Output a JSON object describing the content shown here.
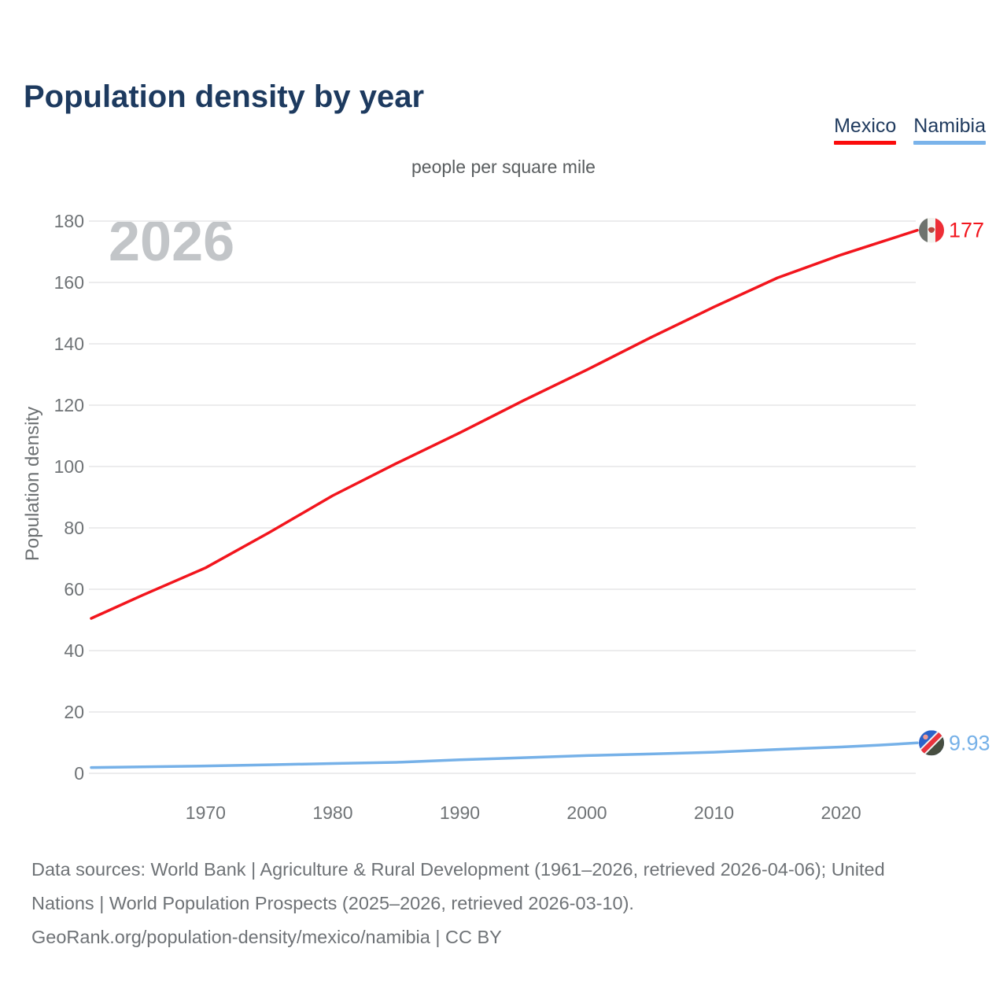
{
  "header": {
    "title": "Population density by year",
    "subtitle": "people per square mile"
  },
  "legend": {
    "items": [
      {
        "label": "Mexico",
        "color": "#fb0b0b"
      },
      {
        "label": "Namibia",
        "color": "#7ab3ea"
      }
    ]
  },
  "chart_data": {
    "type": "line",
    "title": "Population density by year",
    "subtitle": "people per square mile",
    "xlabel": "",
    "ylabel": "Population density",
    "watermark": "2026",
    "xlim": [
      1961,
      2026
    ],
    "ylim": [
      0,
      185
    ],
    "grid": "horizontal",
    "legend_position": "top-right",
    "yticks": [
      0,
      20,
      40,
      60,
      80,
      100,
      120,
      140,
      160,
      180
    ],
    "xticks": [
      1970,
      1980,
      1990,
      2000,
      2010,
      2020
    ],
    "x": [
      1961,
      1965,
      1970,
      1975,
      1980,
      1985,
      1990,
      1995,
      2000,
      2005,
      2010,
      2015,
      2020,
      2023,
      2026
    ],
    "series": [
      {
        "name": "Mexico",
        "color": "#f2151d",
        "flag": "mexico",
        "end_label": "177",
        "values": [
          50.5,
          58,
          67,
          78.5,
          90.5,
          101,
          111,
          121.5,
          131.5,
          142,
          152,
          161.5,
          169,
          173,
          177
        ]
      },
      {
        "name": "Namibia",
        "color": "#76b1e8",
        "flag": "namibia",
        "end_label": "9.93",
        "values": [
          1.9,
          2.1,
          2.4,
          2.8,
          3.2,
          3.6,
          4.4,
          5.1,
          5.8,
          6.3,
          6.9,
          7.8,
          8.6,
          9.2,
          9.93
        ]
      }
    ]
  },
  "footer": {
    "lines": [
      "Data sources: World Bank | Agriculture & Rural Development (1961–2026, retrieved 2026-04-06); United",
      "Nations | World Population Prospects (2025–2026, retrieved 2026-03-10).",
      "GeoRank.org/population-density/mexico/namibia | CC BY"
    ]
  }
}
